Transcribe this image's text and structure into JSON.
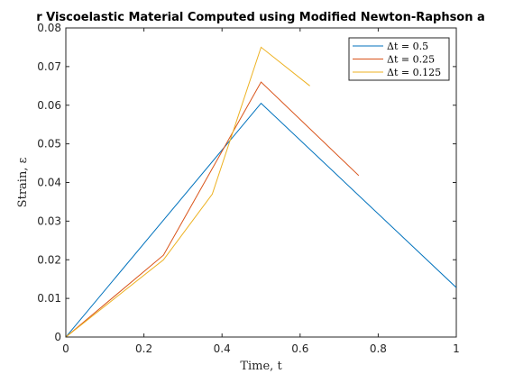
{
  "chart_data": {
    "type": "line",
    "title": "r Viscoelastic Material Computed using Modified Newton-Raphson a",
    "xlabel": "Time, t",
    "ylabel": "Strain, ε",
    "xlim": [
      0,
      1
    ],
    "ylim": [
      0,
      0.08
    ],
    "x_ticks": [
      "0",
      "0.2",
      "0.4",
      "0.6",
      "0.8",
      "1"
    ],
    "y_ticks": [
      "0",
      "0.01",
      "0.02",
      "0.03",
      "0.04",
      "0.05",
      "0.06",
      "0.07",
      "0.08"
    ],
    "grid": false,
    "legend_position": "top-right",
    "series": [
      {
        "name": "Δt = 0.5",
        "color": "#0072BD",
        "x": [
          0,
          0.5,
          1.0
        ],
        "y": [
          0,
          0.0605,
          0.0128
        ]
      },
      {
        "name": "Δt = 0.25",
        "color": "#D95319",
        "x": [
          0,
          0.25,
          0.5,
          0.75
        ],
        "y": [
          0,
          0.0212,
          0.066,
          0.0418
        ]
      },
      {
        "name": "Δt = 0.125",
        "color": "#EDB120",
        "x": [
          0,
          0.25,
          0.375,
          0.5,
          0.625
        ],
        "y": [
          0,
          0.02,
          0.037,
          0.075,
          0.065
        ]
      }
    ]
  }
}
